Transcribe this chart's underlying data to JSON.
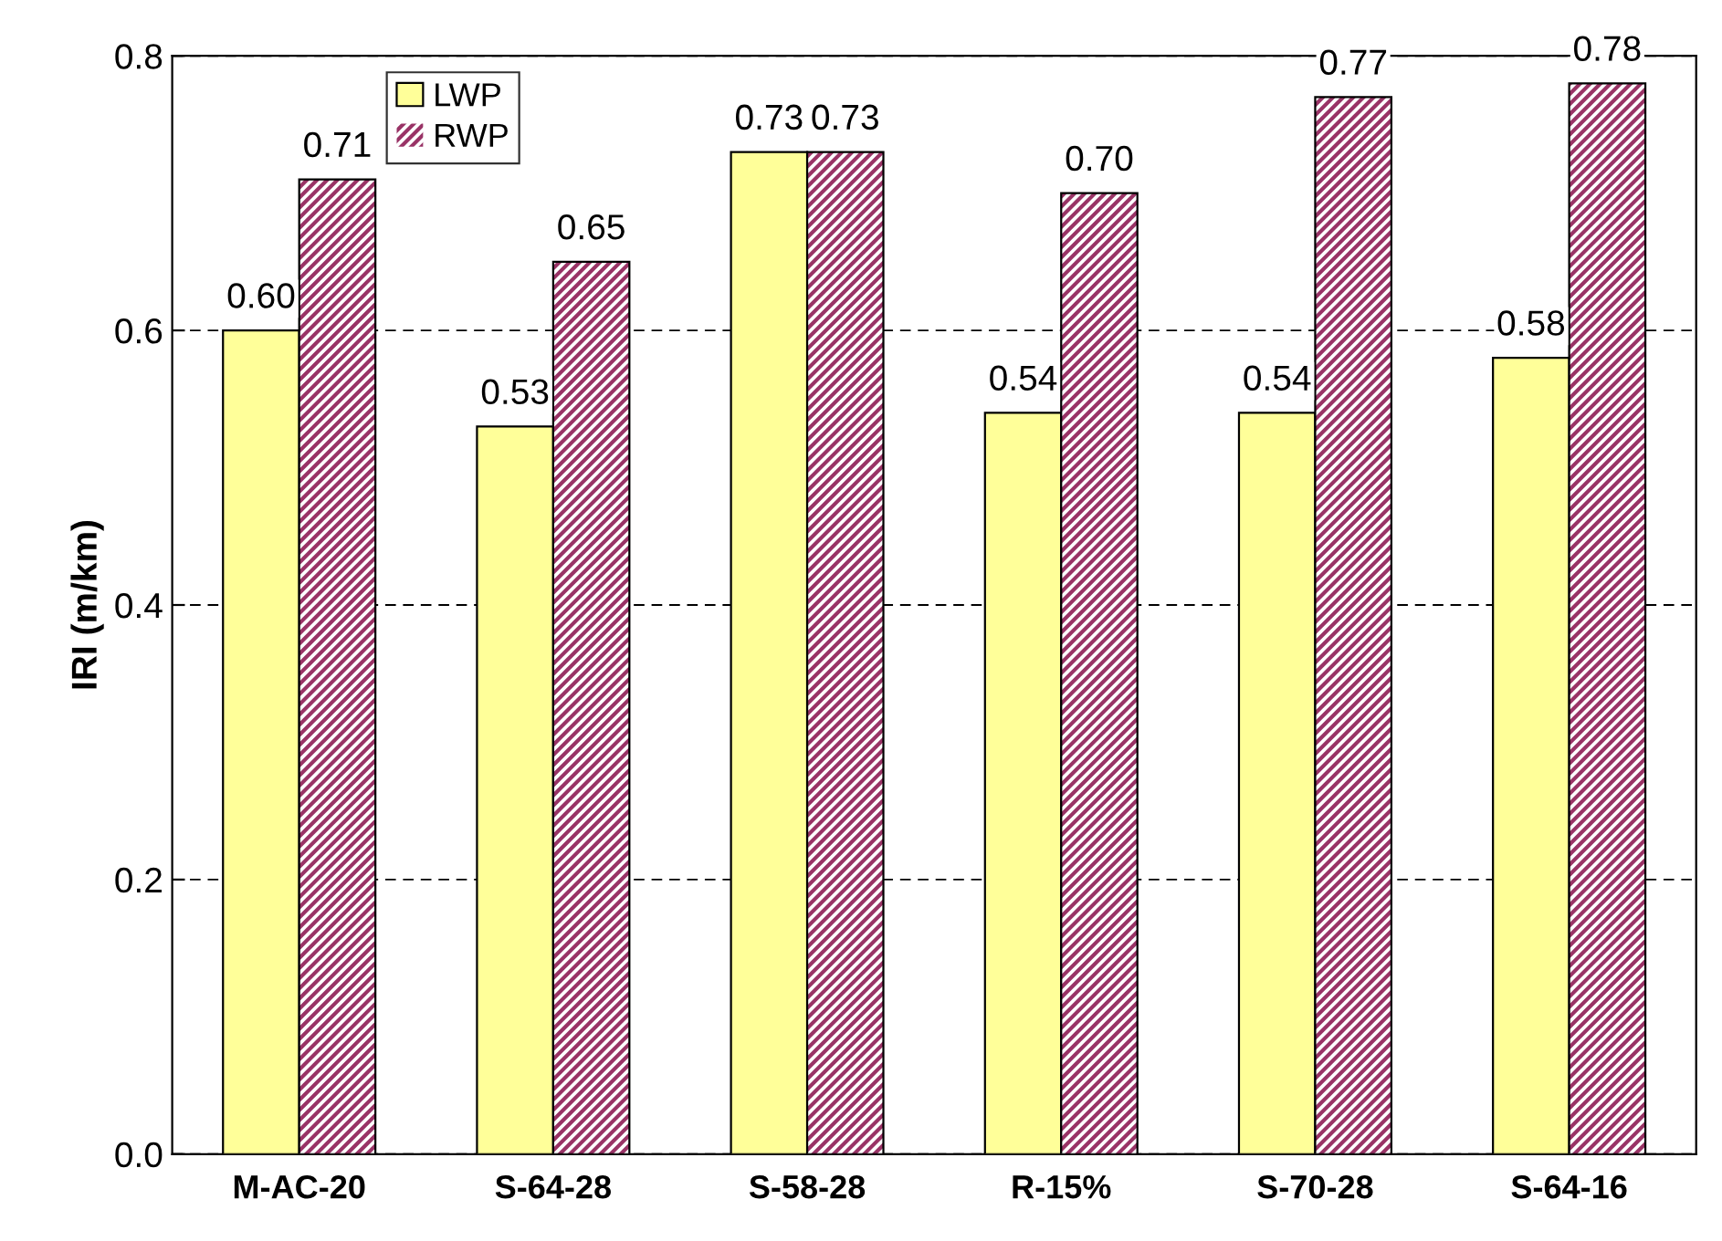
{
  "chart_data": {
    "type": "bar",
    "ylabel": "IRI (m/km)",
    "categories": [
      "M-AC-20",
      "S-64-28",
      "S-58-28",
      "R-15%",
      "S-70-28",
      "S-64-16"
    ],
    "series": [
      {
        "name": "LWP",
        "color": "#ffff99",
        "values": [
          0.6,
          0.53,
          0.73,
          0.54,
          0.54,
          0.58
        ],
        "value_labels": [
          "0.60",
          "0.53",
          "0.73",
          "0.54",
          "0.54",
          "0.58"
        ]
      },
      {
        "name": "RWP",
        "color": "#993366",
        "values": [
          0.71,
          0.65,
          0.73,
          0.7,
          0.77,
          0.78
        ],
        "value_labels": [
          "0.71",
          "0.65",
          "0.73",
          "0.70",
          "0.77",
          "0.78"
        ]
      }
    ],
    "ylim": [
      0,
      0.8
    ],
    "yticks": [
      {
        "value": 0,
        "label": "0.0"
      },
      {
        "value": 0.2,
        "label": "0.2"
      },
      {
        "value": 0.4,
        "label": "0.4"
      },
      {
        "value": 0.6,
        "label": "0.6"
      },
      {
        "value": 0.8,
        "label": "0.8"
      }
    ],
    "grid": "y",
    "line_style": "dashed",
    "legend": "top left"
  }
}
